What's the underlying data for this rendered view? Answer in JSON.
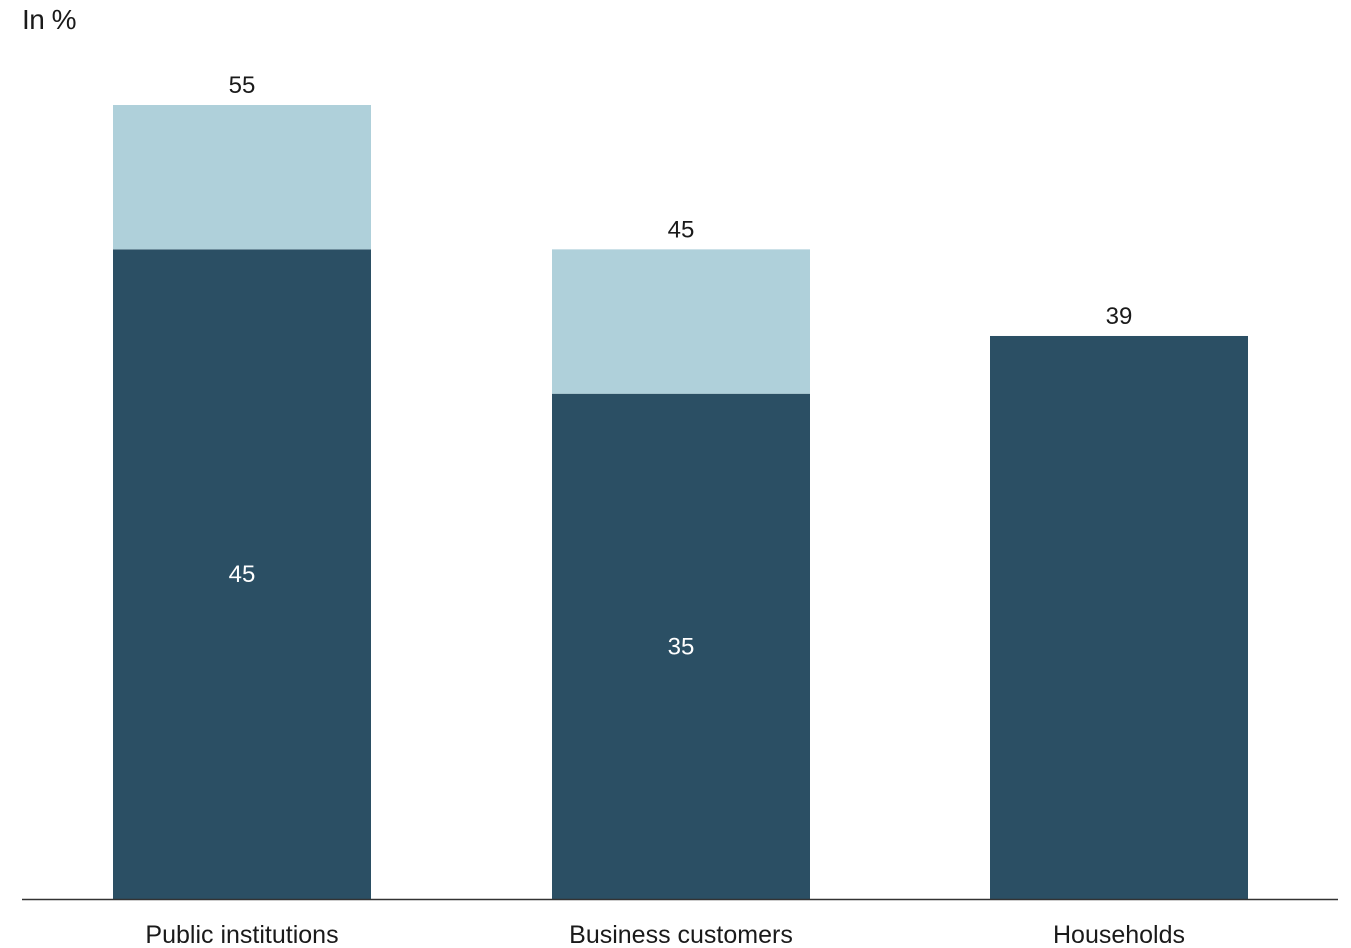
{
  "unit_label": "In %",
  "chart_data": {
    "type": "bar",
    "stacked": true,
    "categories": [
      "Public institutions",
      "Business customers",
      "Households"
    ],
    "series": [
      {
        "values": [
          45,
          35,
          39
        ],
        "color": "#2b4f64",
        "value_labels": [
          "45",
          "35",
          ""
        ]
      },
      {
        "values": [
          10,
          10,
          0
        ],
        "color": "#afd0da"
      }
    ],
    "totals": [
      55,
      45,
      39
    ],
    "total_labels": [
      "55",
      "45",
      "39"
    ],
    "ylim": [
      0,
      55
    ],
    "grid": false,
    "legend": "none"
  }
}
